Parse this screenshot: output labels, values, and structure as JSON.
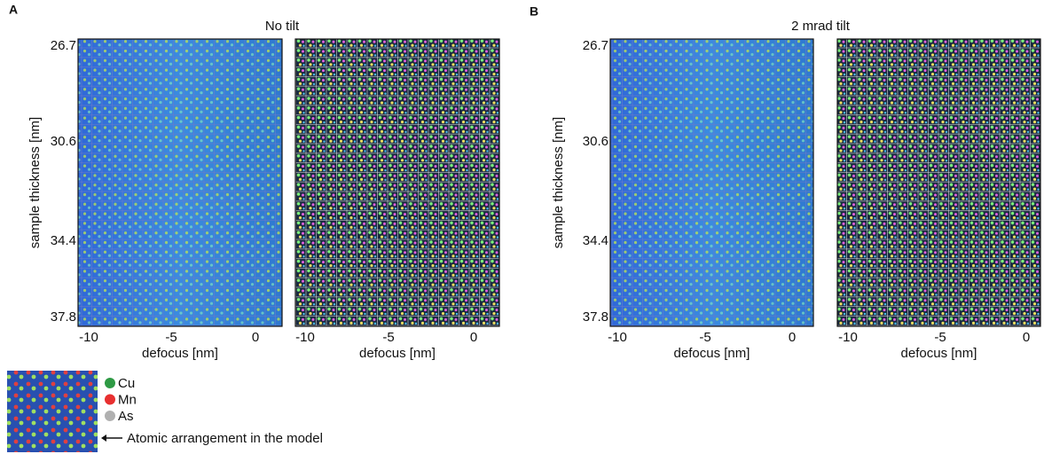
{
  "figure": {
    "panels": [
      {
        "label": "A",
        "title": "No tilt",
        "y_label": "sample thickness [nm]",
        "y_ticks": [
          26.7,
          30.6,
          34.4,
          37.8
        ],
        "x_label": "defocus [nm]",
        "x_ticks": [
          -10,
          -5,
          0
        ]
      },
      {
        "label": "B",
        "title": "2 mrad tilt",
        "y_label": "sample thickness [nm]",
        "y_ticks": [
          26.7,
          30.6,
          34.4,
          37.8
        ],
        "x_label": "defocus [nm]",
        "x_ticks": [
          -10,
          -5,
          0
        ]
      }
    ],
    "legend": {
      "items": [
        "Cu",
        "Mn",
        "As"
      ],
      "caption": "Atomic arrangement in the model"
    }
  }
}
